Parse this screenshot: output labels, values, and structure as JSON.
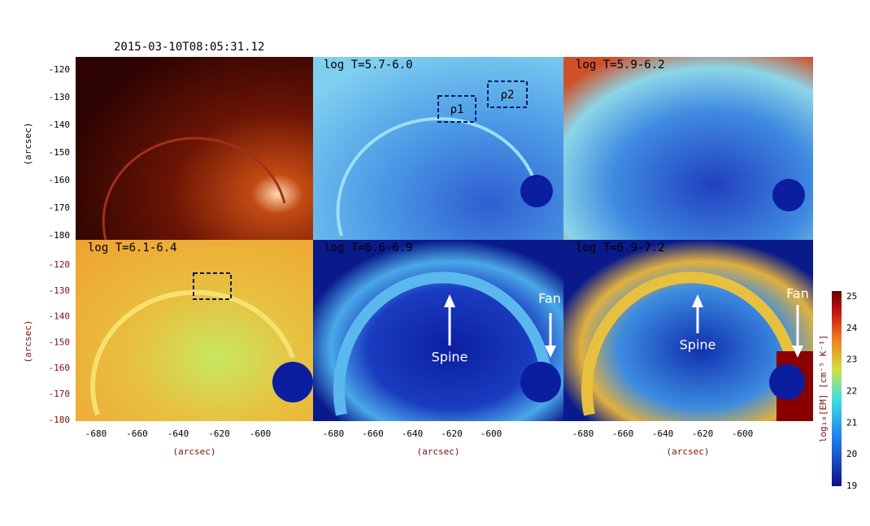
{
  "timestamp": "2015-03-10T08:05:31.12",
  "panels": [
    "log T=5.7-6.0",
    "log T=5.9-6.2",
    "log T=6.1-6.4",
    "log T=6.6-6.9",
    "log T=6.9-7.2"
  ],
  "axis_label": "(arcsec)",
  "yticks": [
    "-120",
    "-130",
    "-140",
    "-150",
    "-160",
    "-170",
    "-180"
  ],
  "xticks": [
    "-680",
    "-660",
    "-640",
    "-620",
    "-600"
  ],
  "boxes": [
    "ρ1",
    "ρ2"
  ],
  "annotations": {
    "spine": "Spine",
    "fan": "Fan"
  },
  "colorbar": {
    "label": "log₁₀[EM] [cm⁻⁵ K⁻¹]",
    "ticks": [
      "25",
      "24",
      "23",
      "22",
      "21",
      "20",
      "19"
    ]
  }
}
